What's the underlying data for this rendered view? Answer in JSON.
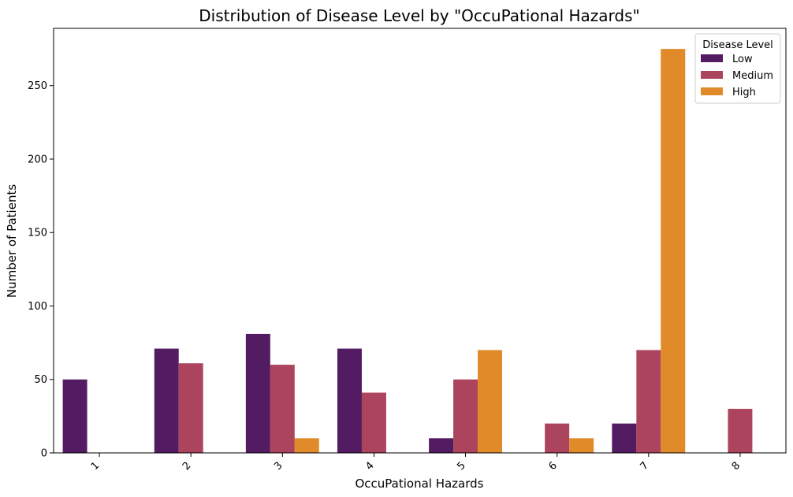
{
  "chart_data": {
    "type": "bar",
    "title": "Distribution of Disease Level by \"OccuPational Hazards\"",
    "xlabel": "OccuPational Hazards",
    "ylabel": "Number of Patients",
    "categories": [
      "1",
      "2",
      "3",
      "4",
      "5",
      "6",
      "7",
      "8"
    ],
    "ylim": [
      0,
      289
    ],
    "yticks": [
      0,
      50,
      100,
      150,
      200,
      250
    ],
    "legend": {
      "title": "Disease Level",
      "position": "top-right"
    },
    "grid": false,
    "series": [
      {
        "name": "Low",
        "color": "#531b61",
        "values": [
          50,
          71,
          81,
          71,
          10,
          0,
          20,
          0
        ]
      },
      {
        "name": "Medium",
        "color": "#ab445c",
        "values": [
          0,
          61,
          60,
          41,
          50,
          20,
          70,
          30
        ]
      },
      {
        "name": "High",
        "color": "#e08a2a",
        "values": [
          0,
          0,
          10,
          0,
          70,
          10,
          275,
          0
        ]
      }
    ]
  }
}
